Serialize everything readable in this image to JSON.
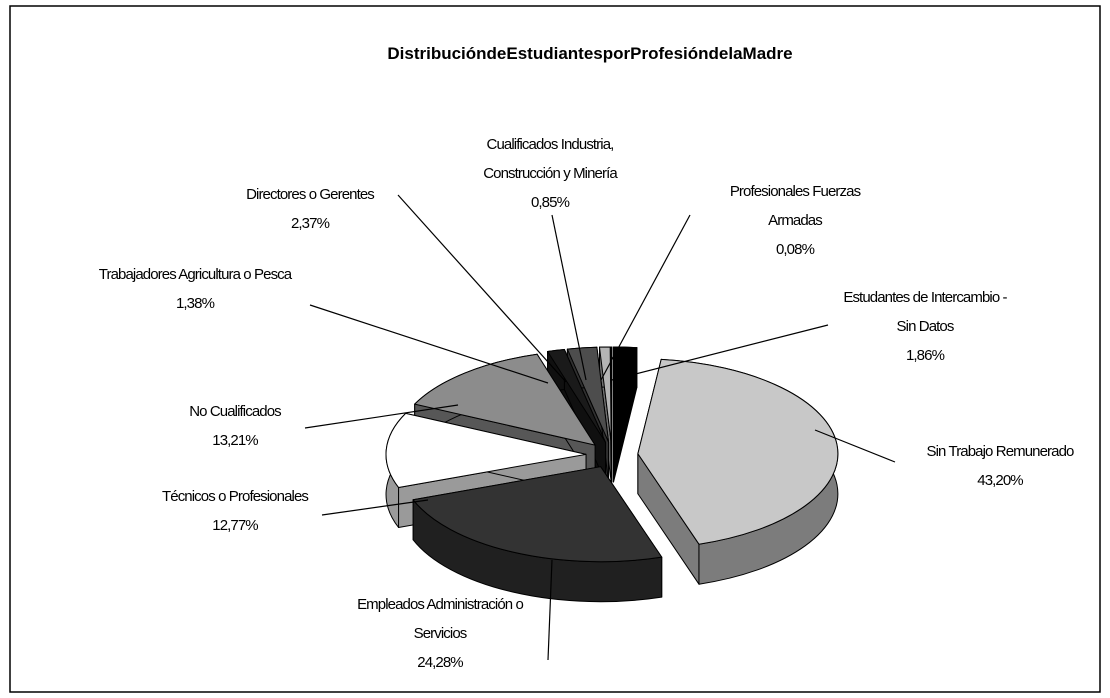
{
  "chart_data": {
    "type": "pie",
    "title": "DistribucióndeEstudiantesporProfesióndelaMadre",
    "categories": [
      "Estudantes de Intercambio - Sin Datos",
      "Sin Trabajo Remunerado",
      "Empleados Administración o Servicios",
      "Técnicos o Profesionales",
      "No Cualificados",
      "Trabajadores Agricultura o Pesca",
      "Directores o Gerentes",
      "Cualificados Industria, Construcción y Minería",
      "Profesionales Fuerzas Armadas"
    ],
    "values": [
      1.86,
      43.2,
      24.28,
      12.77,
      13.21,
      1.38,
      2.37,
      0.85,
      0.08
    ],
    "value_labels": [
      "1,86%",
      "43,20%",
      "24,28%",
      "12,77%",
      "13,21%",
      "1,38%",
      "2,37%",
      "0,85%",
      "0,08%"
    ],
    "colors": [
      "#000000",
      "#c8c8c8",
      "#333333",
      "#ffffff",
      "#8c8c8c",
      "#1a1a1a",
      "#4d4d4d",
      "#b4b4b4",
      "#999999"
    ]
  }
}
